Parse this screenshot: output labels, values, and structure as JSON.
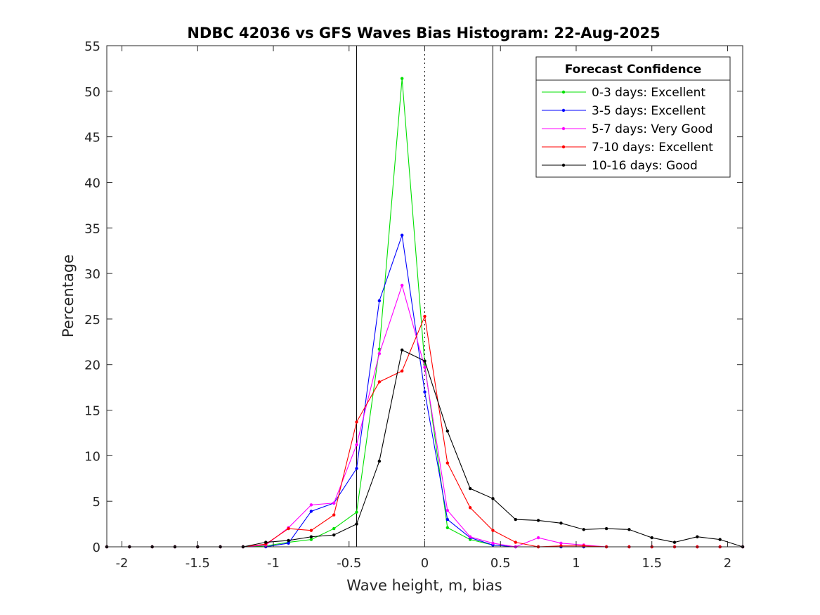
{
  "chart_data": {
    "type": "line",
    "title": "NDBC 42036 vs GFS Waves Bias Histogram: 22-Aug-2025",
    "xlabel": "Wave height, m, bias",
    "ylabel": "Percentage",
    "xlim": [
      -2.1,
      2.1
    ],
    "ylim": [
      0,
      55
    ],
    "xticks": [
      -2,
      -1.5,
      -1,
      -0.5,
      0,
      0.5,
      1,
      1.5,
      2
    ],
    "xtick_labels": [
      "-2",
      "-1.5",
      "-1",
      "-0.5",
      "0",
      "0.5",
      "1",
      "1.5",
      "2"
    ],
    "yticks": [
      0,
      5,
      10,
      15,
      20,
      25,
      30,
      35,
      40,
      45,
      50,
      55
    ],
    "ytick_labels": [
      "0",
      "5",
      "10",
      "15",
      "20",
      "25",
      "30",
      "35",
      "40",
      "45",
      "50",
      "55"
    ],
    "vertical_lines": [
      {
        "x": -0.45,
        "style": "solid"
      },
      {
        "x": 0,
        "style": "dotted"
      },
      {
        "x": 0.45,
        "style": "solid"
      }
    ],
    "legend_title": "Forecast Confidence",
    "legend_position": "top-right",
    "x": [
      -2.1,
      -1.95,
      -1.8,
      -1.65,
      -1.5,
      -1.35,
      -1.2,
      -1.05,
      -0.9,
      -0.75,
      -0.6,
      -0.45,
      -0.3,
      -0.15,
      0,
      0.15,
      0.3,
      0.45,
      0.6,
      0.75,
      0.9,
      1.05,
      1.2,
      1.35,
      1.5,
      1.65,
      1.8,
      1.95,
      2.1
    ],
    "series": [
      {
        "name": "0-3 days: Excellent",
        "color": "#00e000",
        "values": [
          0,
          0,
          0,
          0,
          0,
          0,
          0,
          0.1,
          0.5,
          0.8,
          2.0,
          3.8,
          21.7,
          51.4,
          20.0,
          2.1,
          0.8,
          0.2,
          0,
          0,
          0,
          0,
          0,
          0,
          0,
          0,
          0,
          0,
          0
        ]
      },
      {
        "name": "3-5 days: Excellent",
        "color": "#0000ff",
        "values": [
          0,
          0,
          0,
          0,
          0,
          0,
          0,
          0,
          0.4,
          3.9,
          4.8,
          8.6,
          27.0,
          34.2,
          17.0,
          3.0,
          1.0,
          0.2,
          0,
          0,
          0,
          0,
          0,
          0,
          0,
          0,
          0,
          0,
          0
        ]
      },
      {
        "name": "5-7 days: Very Good",
        "color": "#ff00ff",
        "values": [
          0,
          0,
          0,
          0,
          0,
          0,
          0,
          0.2,
          2.1,
          4.6,
          4.8,
          11.2,
          21.2,
          28.7,
          19.7,
          4.0,
          1.1,
          0.4,
          0,
          1.0,
          0.4,
          0.2,
          0,
          0,
          0,
          0,
          0,
          0,
          0
        ]
      },
      {
        "name": "7-10 days: Excellent",
        "color": "#ff0000",
        "values": [
          0,
          0,
          0,
          0,
          0,
          0,
          0,
          0.3,
          2.0,
          1.8,
          3.5,
          13.7,
          18.1,
          19.3,
          25.3,
          9.2,
          4.3,
          1.8,
          0.5,
          0,
          0.1,
          0.1,
          0,
          0,
          0,
          0,
          0,
          0,
          0
        ]
      },
      {
        "name": "10-16 days: Good",
        "color": "#000000",
        "values": [
          0,
          0,
          0,
          0,
          0,
          0,
          0,
          0.5,
          0.7,
          1.1,
          1.3,
          2.5,
          9.4,
          21.6,
          20.4,
          12.7,
          6.4,
          5.3,
          3.0,
          2.9,
          2.6,
          1.9,
          2.0,
          1.9,
          1.0,
          0.5,
          1.1,
          0.8,
          0
        ]
      }
    ]
  }
}
